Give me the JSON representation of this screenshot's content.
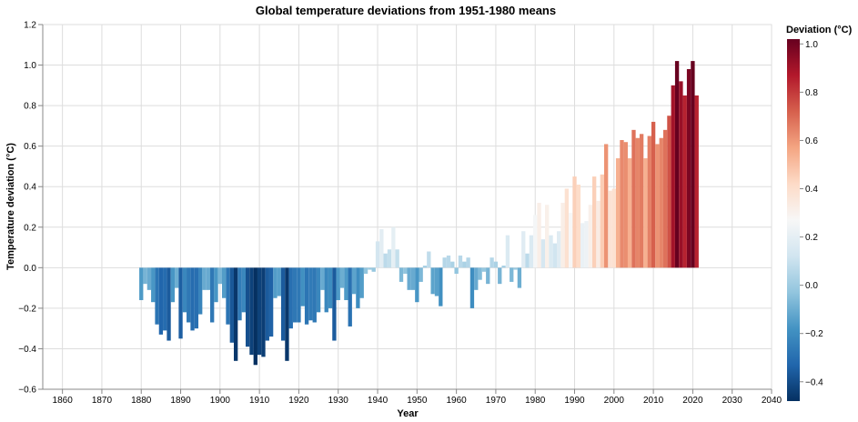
{
  "chart_data": {
    "type": "bar",
    "title": "Global temperature deviations from 1951-1980 means",
    "xlabel": "Year",
    "ylabel": "Temperature deviation (°C)",
    "xlim": [
      1855,
      2040
    ],
    "ylim": [
      -0.6,
      1.2
    ],
    "grid": true,
    "x_ticks": [
      1860,
      1870,
      1880,
      1890,
      1900,
      1910,
      1920,
      1930,
      1940,
      1950,
      1960,
      1970,
      1980,
      1990,
      2000,
      2010,
      2020,
      2030,
      2040
    ],
    "y_ticks": [
      -0.6,
      -0.4,
      -0.2,
      0.0,
      0.2,
      0.4,
      0.6,
      0.8,
      1.0,
      1.2
    ],
    "x_tick_labels": [
      "1860",
      "1870",
      "1880",
      "1890",
      "1900",
      "1910",
      "1920",
      "1930",
      "1940",
      "1950",
      "1960",
      "1970",
      "1980",
      "1990",
      "2000",
      "2010",
      "2020",
      "2030",
      "2040"
    ],
    "y_tick_labels": [
      "−0.6",
      "−0.4",
      "−0.2",
      "0.0",
      "0.2",
      "0.4",
      "0.6",
      "0.8",
      "1.0",
      "1.2"
    ],
    "legend": {
      "title": "Deviation (°C)",
      "placement": "right",
      "min": -0.48,
      "max": 1.02,
      "ticks": [
        1.0,
        0.8,
        0.6,
        0.4,
        0.2,
        0.0,
        -0.2,
        -0.4
      ],
      "tick_labels": [
        "1.0",
        "0.8",
        "0.6",
        "0.4",
        "0.2",
        "0.0",
        "−0.2",
        "−0.4"
      ],
      "color_stops": [
        "#053061",
        "#2166ac",
        "#4393c3",
        "#92c5de",
        "#d1e5f0",
        "#f7f7f7",
        "#fddbc7",
        "#f4a582",
        "#d6604d",
        "#b2182b",
        "#67001f"
      ]
    },
    "years": [
      1880,
      1881,
      1882,
      1883,
      1884,
      1885,
      1886,
      1887,
      1888,
      1889,
      1890,
      1891,
      1892,
      1893,
      1894,
      1895,
      1896,
      1897,
      1898,
      1899,
      1900,
      1901,
      1902,
      1903,
      1904,
      1905,
      1906,
      1907,
      1908,
      1909,
      1910,
      1911,
      1912,
      1913,
      1914,
      1915,
      1916,
      1917,
      1918,
      1919,
      1920,
      1921,
      1922,
      1923,
      1924,
      1925,
      1926,
      1927,
      1928,
      1929,
      1930,
      1931,
      1932,
      1933,
      1934,
      1935,
      1936,
      1937,
      1938,
      1939,
      1940,
      1941,
      1942,
      1943,
      1944,
      1945,
      1946,
      1947,
      1948,
      1949,
      1950,
      1951,
      1952,
      1953,
      1954,
      1955,
      1956,
      1957,
      1958,
      1959,
      1960,
      1961,
      1962,
      1963,
      1964,
      1965,
      1966,
      1967,
      1968,
      1969,
      1970,
      1971,
      1972,
      1973,
      1974,
      1975,
      1976,
      1977,
      1978,
      1979,
      1980,
      1981,
      1982,
      1983,
      1984,
      1985,
      1986,
      1987,
      1988,
      1989,
      1990,
      1991,
      1992,
      1993,
      1994,
      1995,
      1996,
      1997,
      1998,
      1999,
      2000,
      2001,
      2002,
      2003,
      2004,
      2005,
      2006,
      2007,
      2008,
      2009,
      2010,
      2011,
      2012,
      2013,
      2014,
      2015,
      2016,
      2017,
      2018,
      2019,
      2020,
      2021
    ],
    "values": [
      -0.16,
      -0.08,
      -0.11,
      -0.17,
      -0.28,
      -0.33,
      -0.31,
      -0.36,
      -0.17,
      -0.1,
      -0.35,
      -0.22,
      -0.27,
      -0.31,
      -0.3,
      -0.23,
      -0.11,
      -0.11,
      -0.27,
      -0.17,
      -0.08,
      -0.15,
      -0.28,
      -0.37,
      -0.46,
      -0.26,
      -0.22,
      -0.39,
      -0.43,
      -0.48,
      -0.43,
      -0.44,
      -0.36,
      -0.34,
      -0.15,
      -0.14,
      -0.36,
      -0.46,
      -0.3,
      -0.27,
      -0.27,
      -0.19,
      -0.28,
      -0.26,
      -0.27,
      -0.22,
      -0.11,
      -0.22,
      -0.2,
      -0.36,
      -0.16,
      -0.1,
      -0.16,
      -0.29,
      -0.13,
      -0.2,
      -0.15,
      -0.03,
      -0.01,
      -0.02,
      0.13,
      0.19,
      0.07,
      0.09,
      0.2,
      0.09,
      -0.07,
      -0.03,
      -0.11,
      -0.11,
      -0.17,
      -0.07,
      0.01,
      0.08,
      -0.13,
      -0.14,
      -0.19,
      0.05,
      0.06,
      0.03,
      -0.03,
      0.06,
      0.03,
      0.05,
      -0.2,
      -0.11,
      -0.06,
      -0.02,
      -0.08,
      0.05,
      0.03,
      -0.08,
      0.01,
      0.16,
      -0.07,
      -0.01,
      -0.1,
      0.18,
      0.07,
      0.16,
      0.26,
      0.32,
      0.14,
      0.31,
      0.16,
      0.12,
      0.18,
      0.32,
      0.39,
      0.27,
      0.45,
      0.41,
      0.22,
      0.23,
      0.31,
      0.45,
      0.33,
      0.46,
      0.61,
      0.38,
      0.39,
      0.54,
      0.63,
      0.62,
      0.54,
      0.68,
      0.64,
      0.66,
      0.54,
      0.65,
      0.72,
      0.61,
      0.64,
      0.68,
      0.75,
      0.9,
      1.02,
      0.92,
      0.85,
      0.98,
      1.02,
      0.85
    ]
  }
}
